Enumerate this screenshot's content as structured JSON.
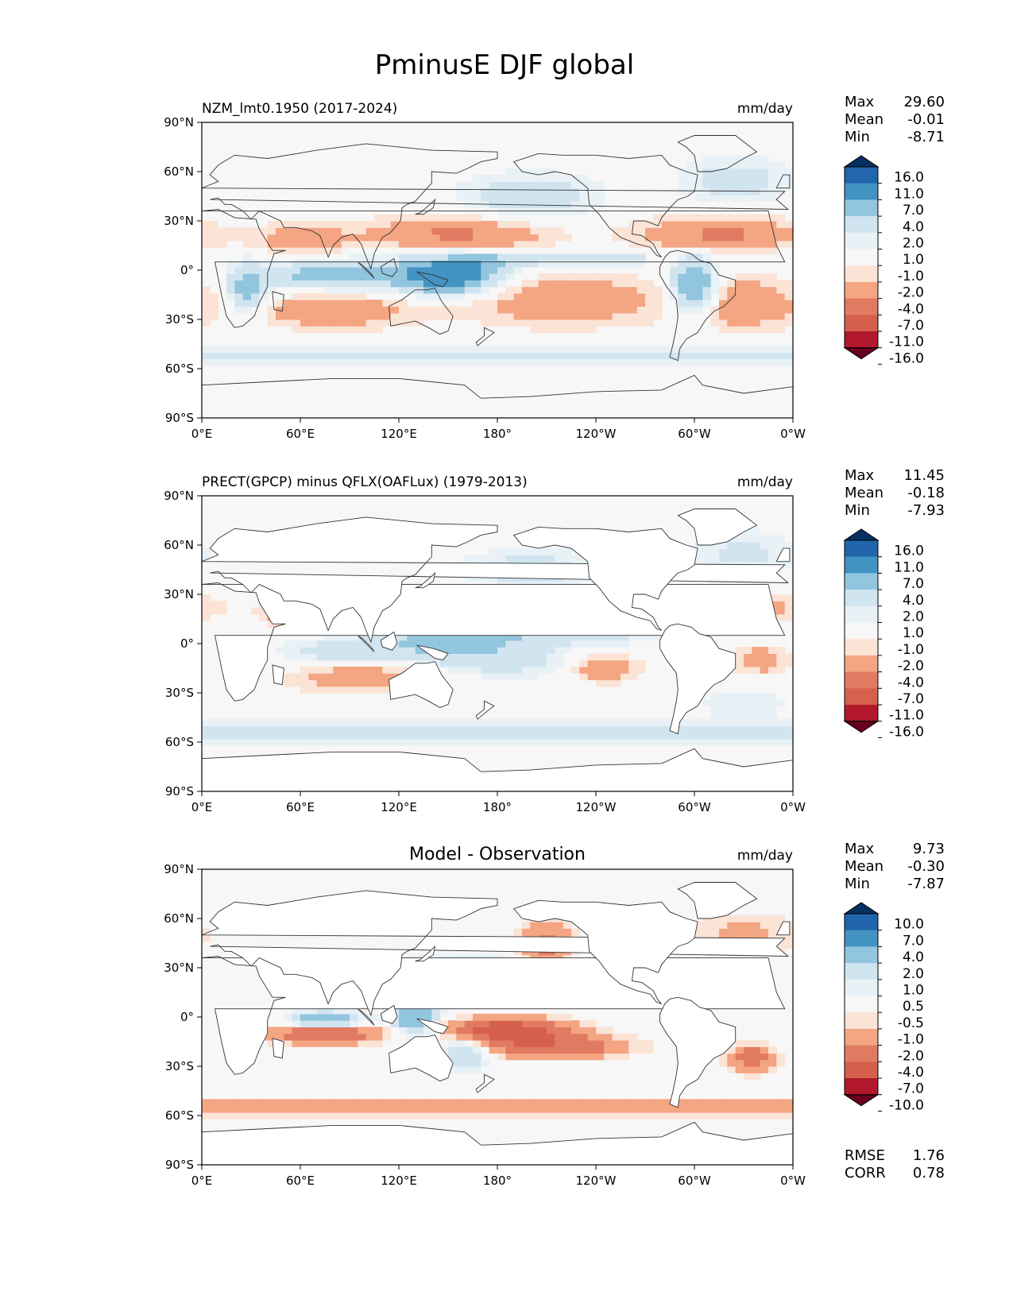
{
  "title": "PminusE DJF global",
  "chart_data": [
    {
      "type": "heatmap",
      "title": "NZM_lmt0.1950 (2017-2024)",
      "units": "mm/day",
      "stats": [
        {
          "label": "Max",
          "value": "29.60"
        },
        {
          "label": "Mean",
          "value": "-0.01"
        },
        {
          "label": "Min",
          "value": "-8.71"
        }
      ],
      "colorbar": {
        "labels": [
          "16.0",
          "11.0",
          "7.0",
          "4.0",
          "2.0",
          "1.0",
          "-1.0",
          "-2.0",
          "-4.0",
          "-7.0",
          "-11.0",
          "-16.0"
        ],
        "colors": [
          "#053061",
          "#2166ac",
          "#4393c3",
          "#92c5de",
          "#d1e5f0",
          "#e8f1f6",
          "#f7f7f7",
          "#fbe3d6",
          "#f4a582",
          "#e07b62",
          "#d6604d",
          "#b2182b",
          "#67001f"
        ],
        "extend": "both"
      },
      "x_ticks": [
        "0°E",
        "60°E",
        "120°E",
        "180°",
        "120°W",
        "60°W",
        "0°W"
      ],
      "y_ticks": [
        "90°N",
        "60°N",
        "30°N",
        "0°",
        "30°S",
        "60°S",
        "90°S"
      ],
      "xlim": [
        0,
        360
      ],
      "ylim": [
        -90,
        90
      ]
    },
    {
      "type": "heatmap",
      "title": "PRECT(GPCP) minus QFLX(OAFLux) (1979-2013)",
      "units": "mm/day",
      "stats": [
        {
          "label": "Max",
          "value": "11.45"
        },
        {
          "label": "Mean",
          "value": "-0.18"
        },
        {
          "label": "Min",
          "value": "-7.93"
        }
      ],
      "colorbar": {
        "labels": [
          "16.0",
          "11.0",
          "7.0",
          "4.0",
          "2.0",
          "1.0",
          "-1.0",
          "-2.0",
          "-4.0",
          "-7.0",
          "-11.0",
          "-16.0"
        ],
        "colors": [
          "#053061",
          "#2166ac",
          "#4393c3",
          "#92c5de",
          "#d1e5f0",
          "#e8f1f6",
          "#f7f7f7",
          "#fbe3d6",
          "#f4a582",
          "#e07b62",
          "#d6604d",
          "#b2182b",
          "#67001f"
        ],
        "extend": "both"
      },
      "x_ticks": [
        "0°E",
        "60°E",
        "120°E",
        "180°",
        "120°W",
        "60°W",
        "0°W"
      ],
      "y_ticks": [
        "90°N",
        "60°N",
        "30°N",
        "0°",
        "30°S",
        "60°S",
        "90°S"
      ],
      "xlim": [
        0,
        360
      ],
      "ylim": [
        -90,
        90
      ]
    },
    {
      "type": "heatmap",
      "title": "Model - Observation",
      "units": "mm/day",
      "stats": [
        {
          "label": "Max",
          "value": "9.73"
        },
        {
          "label": "Mean",
          "value": "-0.30"
        },
        {
          "label": "Min",
          "value": "-7.87"
        }
      ],
      "colorbar": {
        "labels": [
          "10.0",
          "7.0",
          "4.0",
          "2.0",
          "1.0",
          "0.5",
          "-0.5",
          "-1.0",
          "-2.0",
          "-4.0",
          "-7.0",
          "-10.0"
        ],
        "colors": [
          "#053061",
          "#2166ac",
          "#4393c3",
          "#92c5de",
          "#d1e5f0",
          "#e8f1f6",
          "#f7f7f7",
          "#fbe3d6",
          "#f4a582",
          "#e07b62",
          "#d6604d",
          "#b2182b",
          "#67001f"
        ],
        "extend": "both"
      },
      "metrics": [
        {
          "label": "RMSE",
          "value": "1.76"
        },
        {
          "label": "CORR",
          "value": "0.78"
        }
      ],
      "x_ticks": [
        "0°E",
        "60°E",
        "120°E",
        "180°",
        "120°W",
        "60°W",
        "0°W"
      ],
      "y_ticks": [
        "90°N",
        "60°N",
        "30°N",
        "0°",
        "30°S",
        "60°S",
        "90°S"
      ],
      "xlim": [
        0,
        360
      ],
      "ylim": [
        -90,
        90
      ]
    }
  ]
}
